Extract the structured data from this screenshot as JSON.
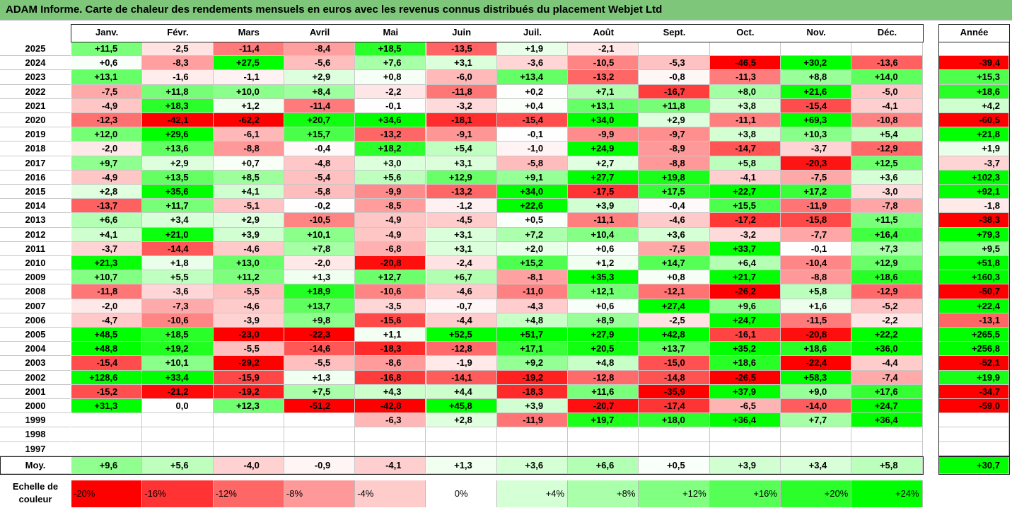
{
  "title": "ADAM Informe. Carte de chaleur des rendements mensuels en euros avec les revenus connus distribués du placement Webjet Ltd",
  "chart_data": {
    "type": "heatmap",
    "columns": [
      "Janv.",
      "Févr.",
      "Mars",
      "Avril",
      "Mai",
      "Juin",
      "Juil.",
      "Août",
      "Sept.",
      "Oct.",
      "Nov.",
      "Déc."
    ],
    "year_column_header": "Année",
    "rows": [
      {
        "year": "2025",
        "months": [
          "+11,5",
          "-2,5",
          "-11,4",
          "-8,4",
          "+18,5",
          "-13,5",
          "+1,9",
          "-2,1",
          "",
          "",
          "",
          ""
        ],
        "annual": ""
      },
      {
        "year": "2024",
        "months": [
          "+0,6",
          "-8,3",
          "+27,5",
          "-5,6",
          "+7,6",
          "+3,1",
          "-3,6",
          "-10,5",
          "-5,3",
          "-46,5",
          "+30,2",
          "-13,6"
        ],
        "annual": "-39,4"
      },
      {
        "year": "2023",
        "months": [
          "+13,1",
          "-1,6",
          "-1,1",
          "+2,9",
          "+0,8",
          "-6,0",
          "+13,4",
          "-13,2",
          "-0,8",
          "-11,3",
          "+8,8",
          "+14,0"
        ],
        "annual": "+15,3"
      },
      {
        "year": "2022",
        "months": [
          "-7,5",
          "+11,8",
          "+10,0",
          "+8,4",
          "-2,2",
          "-11,8",
          "+0,2",
          "+7,1",
          "-16,7",
          "+8,0",
          "+21,6",
          "-5,0"
        ],
        "annual": "+18,6"
      },
      {
        "year": "2021",
        "months": [
          "-4,9",
          "+18,3",
          "+1,2",
          "-11,4",
          "-0,1",
          "-3,2",
          "+0,4",
          "+13,1",
          "+11,8",
          "+3,8",
          "-15,4",
          "-4,1"
        ],
        "annual": "+4,2"
      },
      {
        "year": "2020",
        "months": [
          "-12,3",
          "-42,1",
          "-62,2",
          "+20,7",
          "+34,6",
          "-18,1",
          "-15,4",
          "+34,0",
          "+2,9",
          "-11,1",
          "+69,3",
          "-10,8"
        ],
        "annual": "-60,5"
      },
      {
        "year": "2019",
        "months": [
          "+12,0",
          "+29,6",
          "-6,1",
          "+15,7",
          "-13,2",
          "-9,1",
          "-0,1",
          "-9,9",
          "-9,7",
          "+3,8",
          "+10,3",
          "+5,4"
        ],
        "annual": "+21,8"
      },
      {
        "year": "2018",
        "months": [
          "-2,0",
          "+13,6",
          "-8,8",
          "-0,4",
          "+18,2",
          "+5,4",
          "-1,0",
          "+24,9",
          "-8,9",
          "-14,7",
          "-3,7",
          "-12,9"
        ],
        "annual": "+1,9"
      },
      {
        "year": "2017",
        "months": [
          "+9,7",
          "+2,9",
          "+0,7",
          "-4,8",
          "+3,0",
          "+3,1",
          "-5,8",
          "+2,7",
          "-8,8",
          "+5,8",
          "-20,3",
          "+12,5"
        ],
        "annual": "-3,7"
      },
      {
        "year": "2016",
        "months": [
          "-4,9",
          "+13,5",
          "+8,5",
          "-5,4",
          "+5,6",
          "+12,9",
          "+9,1",
          "+27,7",
          "+19,8",
          "-4,1",
          "-7,5",
          "+3,6"
        ],
        "annual": "+102,3"
      },
      {
        "year": "2015",
        "months": [
          "+2,8",
          "+35,6",
          "+4,1",
          "-5,8",
          "-9,9",
          "-13,2",
          "+34,0",
          "-17,5",
          "+17,5",
          "+22,7",
          "+17,2",
          "-3,0"
        ],
        "annual": "+92,1"
      },
      {
        "year": "2014",
        "months": [
          "-13,7",
          "+11,7",
          "-5,1",
          "-0,2",
          "-8,5",
          "-1,2",
          "+22,6",
          "+3,9",
          "-0,4",
          "+15,5",
          "-11,9",
          "-7,8"
        ],
        "annual": "-1,8"
      },
      {
        "year": "2013",
        "months": [
          "+6,6",
          "+3,4",
          "+2,9",
          "-10,5",
          "-4,9",
          "-4,5",
          "+0,5",
          "-11,1",
          "-4,6",
          "-17,2",
          "-15,8",
          "+11,5"
        ],
        "annual": "-38,3"
      },
      {
        "year": "2012",
        "months": [
          "+4,1",
          "+21,0",
          "+3,9",
          "+10,1",
          "-4,9",
          "+3,1",
          "+7,2",
          "+10,4",
          "+3,6",
          "-3,2",
          "-7,7",
          "+16,4"
        ],
        "annual": "+79,3"
      },
      {
        "year": "2011",
        "months": [
          "-3,7",
          "-14,4",
          "-4,6",
          "+7,8",
          "-6,8",
          "+3,1",
          "+2,0",
          "+0,6",
          "-7,5",
          "+33,7",
          "-0,1",
          "+7,3"
        ],
        "annual": "+9,5"
      },
      {
        "year": "2010",
        "months": [
          "+21,3",
          "+1,8",
          "+13,0",
          "-2,0",
          "-20,8",
          "-2,4",
          "+15,2",
          "+1,2",
          "+14,7",
          "+6,4",
          "-10,4",
          "+12,9"
        ],
        "annual": "+51,8"
      },
      {
        "year": "2009",
        "months": [
          "+10,7",
          "+5,5",
          "+11,2",
          "+1,3",
          "+12,7",
          "+6,7",
          "-8,1",
          "+35,3",
          "+0,8",
          "+21,7",
          "-8,8",
          "+18,6"
        ],
        "annual": "+160,3"
      },
      {
        "year": "2008",
        "months": [
          "-11,8",
          "-3,6",
          "-5,5",
          "+18,9",
          "-10,6",
          "-4,6",
          "-11,0",
          "+12,1",
          "-12,1",
          "-26,2",
          "+5,8",
          "-12,9"
        ],
        "annual": "-50,7"
      },
      {
        "year": "2007",
        "months": [
          "-2,0",
          "-7,3",
          "-4,6",
          "+13,7",
          "-3,5",
          "-0,7",
          "-4,3",
          "+0,6",
          "+27,4",
          "+9,6",
          "+1,6",
          "-5,2"
        ],
        "annual": "+22,4"
      },
      {
        "year": "2006",
        "months": [
          "-4,7",
          "-10,6",
          "-3,9",
          "+9,8",
          "-15,6",
          "-4,4",
          "+4,8",
          "+8,9",
          "-2,5",
          "+24,7",
          "-11,5",
          "-2,2"
        ],
        "annual": "-13,1"
      },
      {
        "year": "2005",
        "months": [
          "+48,5",
          "+18,5",
          "-23,0",
          "-22,3",
          "+1,1",
          "+52,5",
          "+51,7",
          "+27,9",
          "+42,8",
          "-16,1",
          "-20,8",
          "+22,2"
        ],
        "annual": "+265,5"
      },
      {
        "year": "2004",
        "months": [
          "+48,8",
          "+19,2",
          "-5,5",
          "-14,6",
          "-18,3",
          "-12,8",
          "+17,1",
          "+20,5",
          "+13,7",
          "+35,2",
          "+18,6",
          "+36,0"
        ],
        "annual": "+256,8"
      },
      {
        "year": "2003",
        "months": [
          "-15,4",
          "+10,1",
          "-29,2",
          "-5,5",
          "-8,6",
          "-1,9",
          "+9,2",
          "+4,8",
          "-15,0",
          "+18,6",
          "-22,4",
          "-4,4"
        ],
        "annual": "-52,1"
      },
      {
        "year": "2002",
        "months": [
          "+128,6",
          "+33,4",
          "-15,9",
          "+1,3",
          "-16,8",
          "-14,1",
          "-19,2",
          "-12,8",
          "-14,8",
          "-26,5",
          "+58,3",
          "-7,4"
        ],
        "annual": "+19,9"
      },
      {
        "year": "2001",
        "months": [
          "-15,2",
          "-21,2",
          "-19,2",
          "+7,5",
          "+4,3",
          "+4,4",
          "-18,3",
          "+11,6",
          "-35,9",
          "+37,9",
          "+9,0",
          "+17,6"
        ],
        "annual": "-34,7"
      },
      {
        "year": "2000",
        "months": [
          "+31,3",
          "0,0",
          "+12,3",
          "-51,2",
          "-42,8",
          "+45,8",
          "+3,9",
          "-20,7",
          "-17,4",
          "-6,5",
          "-14,0",
          "+24,7"
        ],
        "annual": "-59,0"
      },
      {
        "year": "1999",
        "months": [
          "",
          "",
          "",
          "",
          "-6,3",
          "+2,8",
          "-11,9",
          "+19,7",
          "+18,0",
          "+36,4",
          "+7,7",
          "+36,4"
        ],
        "annual": ""
      },
      {
        "year": "1998",
        "months": [
          "",
          "",
          "",
          "",
          "",
          "",
          "",
          "",
          "",
          "",
          "",
          ""
        ],
        "annual": ""
      },
      {
        "year": "1997",
        "months": [
          "",
          "",
          "",
          "",
          "",
          "",
          "",
          "",
          "",
          "",
          "",
          ""
        ],
        "annual": ""
      }
    ],
    "average_label": "Moy.",
    "average": [
      "+9,6",
      "+5,6",
      "-4,0",
      "-0,9",
      "-4,1",
      "+1,3",
      "+3,6",
      "+6,6",
      "+0,5",
      "+3,9",
      "+3,4",
      "+5,8"
    ],
    "average_annual": "+30,7",
    "legend_label": "Echelle de couleur",
    "scale": [
      "-20%",
      "-16%",
      "-12%",
      "-8%",
      "-4%",
      "0%",
      "+4%",
      "+8%",
      "+12%",
      "+16%",
      "+20%",
      "+24%"
    ],
    "colors": {
      "negative": "#ff0000",
      "positive": "#00ff00",
      "neutral": "#ffffff",
      "title_bar": "#7dc67a"
    }
  }
}
